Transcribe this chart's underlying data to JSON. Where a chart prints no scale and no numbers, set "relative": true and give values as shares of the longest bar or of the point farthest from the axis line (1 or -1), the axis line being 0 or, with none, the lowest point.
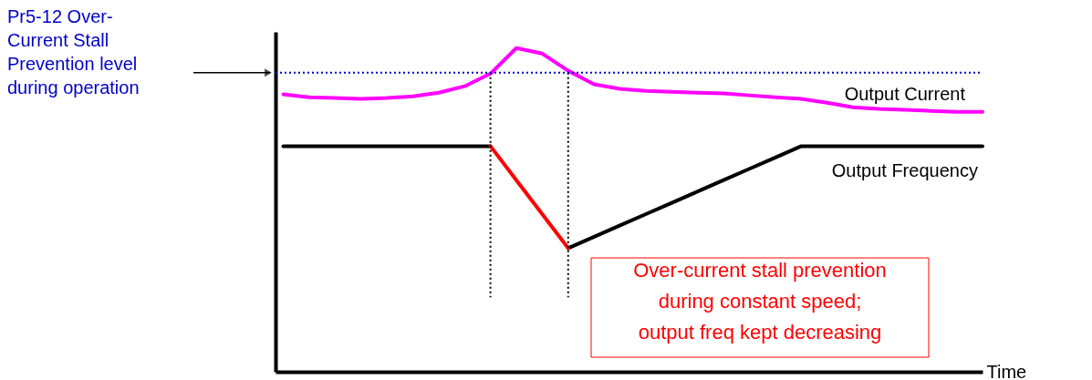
{
  "chart_data": {
    "type": "line",
    "relative": true,
    "xlabel": "Time",
    "categories": [
      null,
      null,
      null,
      null,
      null,
      null,
      null,
      null,
      null,
      null,
      null,
      null,
      null,
      null,
      null,
      null,
      null,
      null,
      null,
      null,
      null,
      null,
      null,
      null,
      null,
      null,
      null,
      null
    ],
    "series": [
      {
        "name": "Output Current",
        "color": "#ff00ff",
        "values": [
          0.857,
          0.848,
          0.846,
          0.843,
          0.846,
          0.851,
          0.862,
          0.882,
          0.921,
          1.0,
          0.983,
          0.93,
          0.888,
          0.874,
          0.868,
          0.865,
          0.862,
          0.86,
          0.854,
          0.848,
          0.843,
          0.831,
          0.817,
          0.812,
          0.809,
          0.806,
          0.803,
          0.803
        ]
      },
      {
        "name": "Output Frequency",
        "color": "#000000",
        "values": [
          0.697,
          0.697,
          0.697,
          0.697,
          0.697,
          0.697,
          0.697,
          0.697,
          0.697,
          null,
          null,
          0.382,
          0.417,
          0.452,
          0.487,
          0.522,
          0.557,
          0.592,
          0.627,
          0.662,
          0.697,
          0.697,
          0.697,
          0.697,
          0.697,
          0.697,
          0.697,
          0.697
        ]
      },
      {
        "color": "#ff0000",
        "values": [
          null,
          null,
          null,
          null,
          null,
          null,
          null,
          null,
          0.697,
          0.592,
          0.487,
          0.382,
          null,
          null,
          null,
          null,
          null,
          null,
          null,
          null,
          null,
          null,
          null,
          null,
          null,
          null,
          null,
          null
        ]
      }
    ],
    "ref_lines": [
      {
        "axis": "y",
        "value": 0.924,
        "label": "Pr5-12 Over-\nCurrent Stall\nPrevention level\nduring operation",
        "color": "#0000cc",
        "line_style": "dotted"
      }
    ],
    "annotations": [
      "Over-current stall prevention\nduring constant speed;\noutput freq kept decreasing"
    ],
    "grid": false,
    "legend": false,
    "marker": "none",
    "line_style": "solid"
  }
}
